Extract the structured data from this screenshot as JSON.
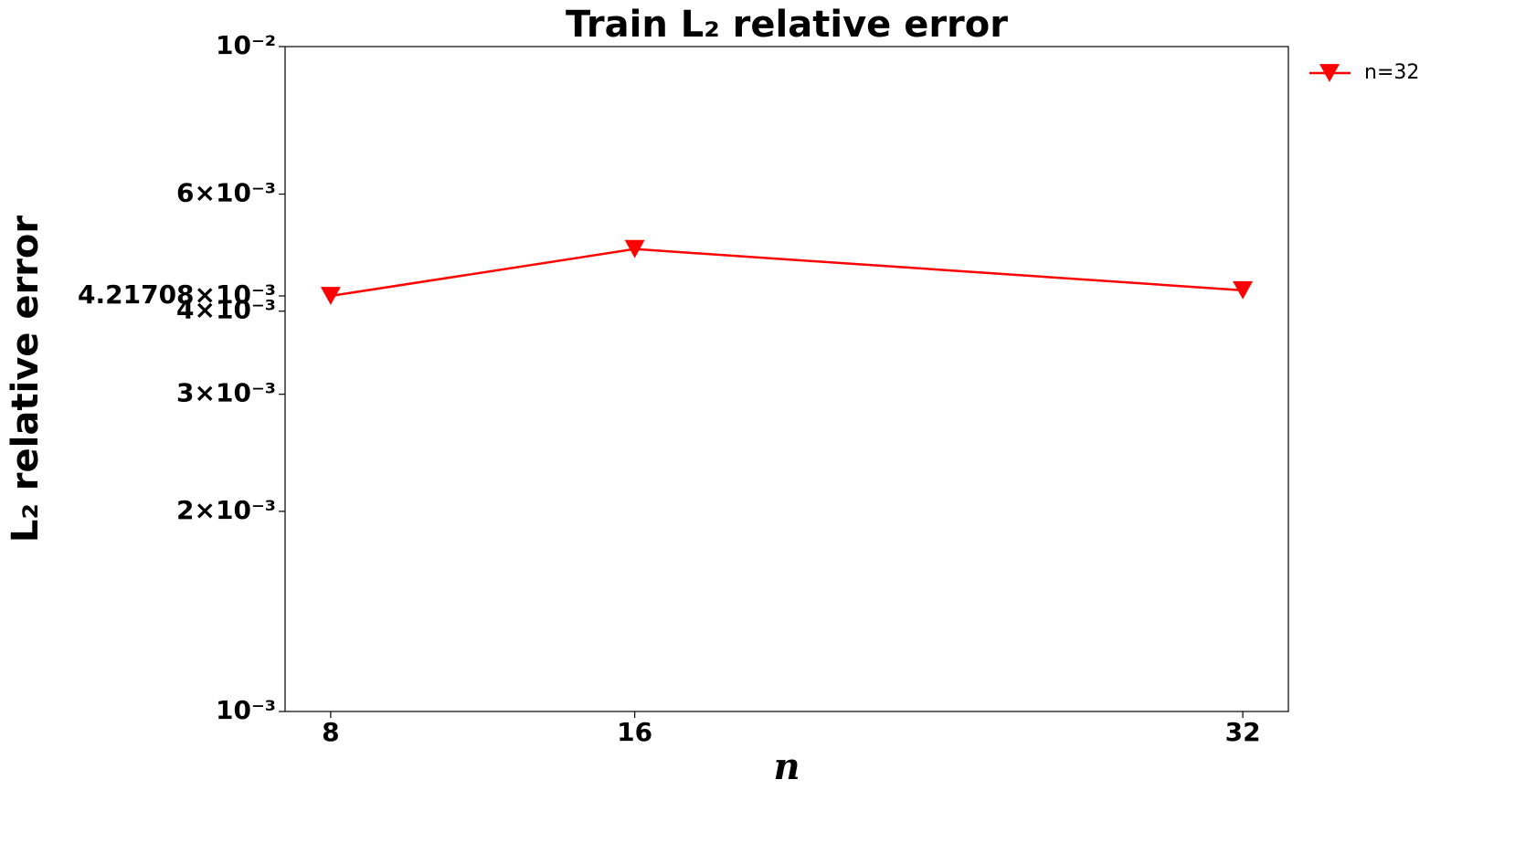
{
  "chart_data": {
    "type": "line",
    "title": "Train L₂ relative error",
    "x_label": "n",
    "y_label": "L₂ relative error",
    "x": [
      8,
      16,
      32
    ],
    "series": [
      {
        "name": "n=32",
        "color": "#ff0000",
        "marker": "triangle-down",
        "values": [
          0.00421708,
          0.00496,
          0.0043
        ]
      }
    ],
    "xlim": [
      6.8,
      33.2
    ],
    "xticks": [
      8,
      16,
      32
    ],
    "ylim": [
      0.001,
      0.01
    ],
    "yscale": "log",
    "yticks": [
      {
        "value": 0.01,
        "label": "10⁻²"
      },
      {
        "value": 0.006,
        "label": "6×10⁻³"
      },
      {
        "value": 0.00421708,
        "label": "4.21708×10⁻³"
      },
      {
        "value": 0.004,
        "label": "4×10⁻³"
      },
      {
        "value": 0.003,
        "label": "3×10⁻³"
      },
      {
        "value": 0.002,
        "label": "2×10⁻³"
      },
      {
        "value": 0.001,
        "label": "10⁻³"
      }
    ],
    "grid": false,
    "legend": "outside upper right"
  }
}
